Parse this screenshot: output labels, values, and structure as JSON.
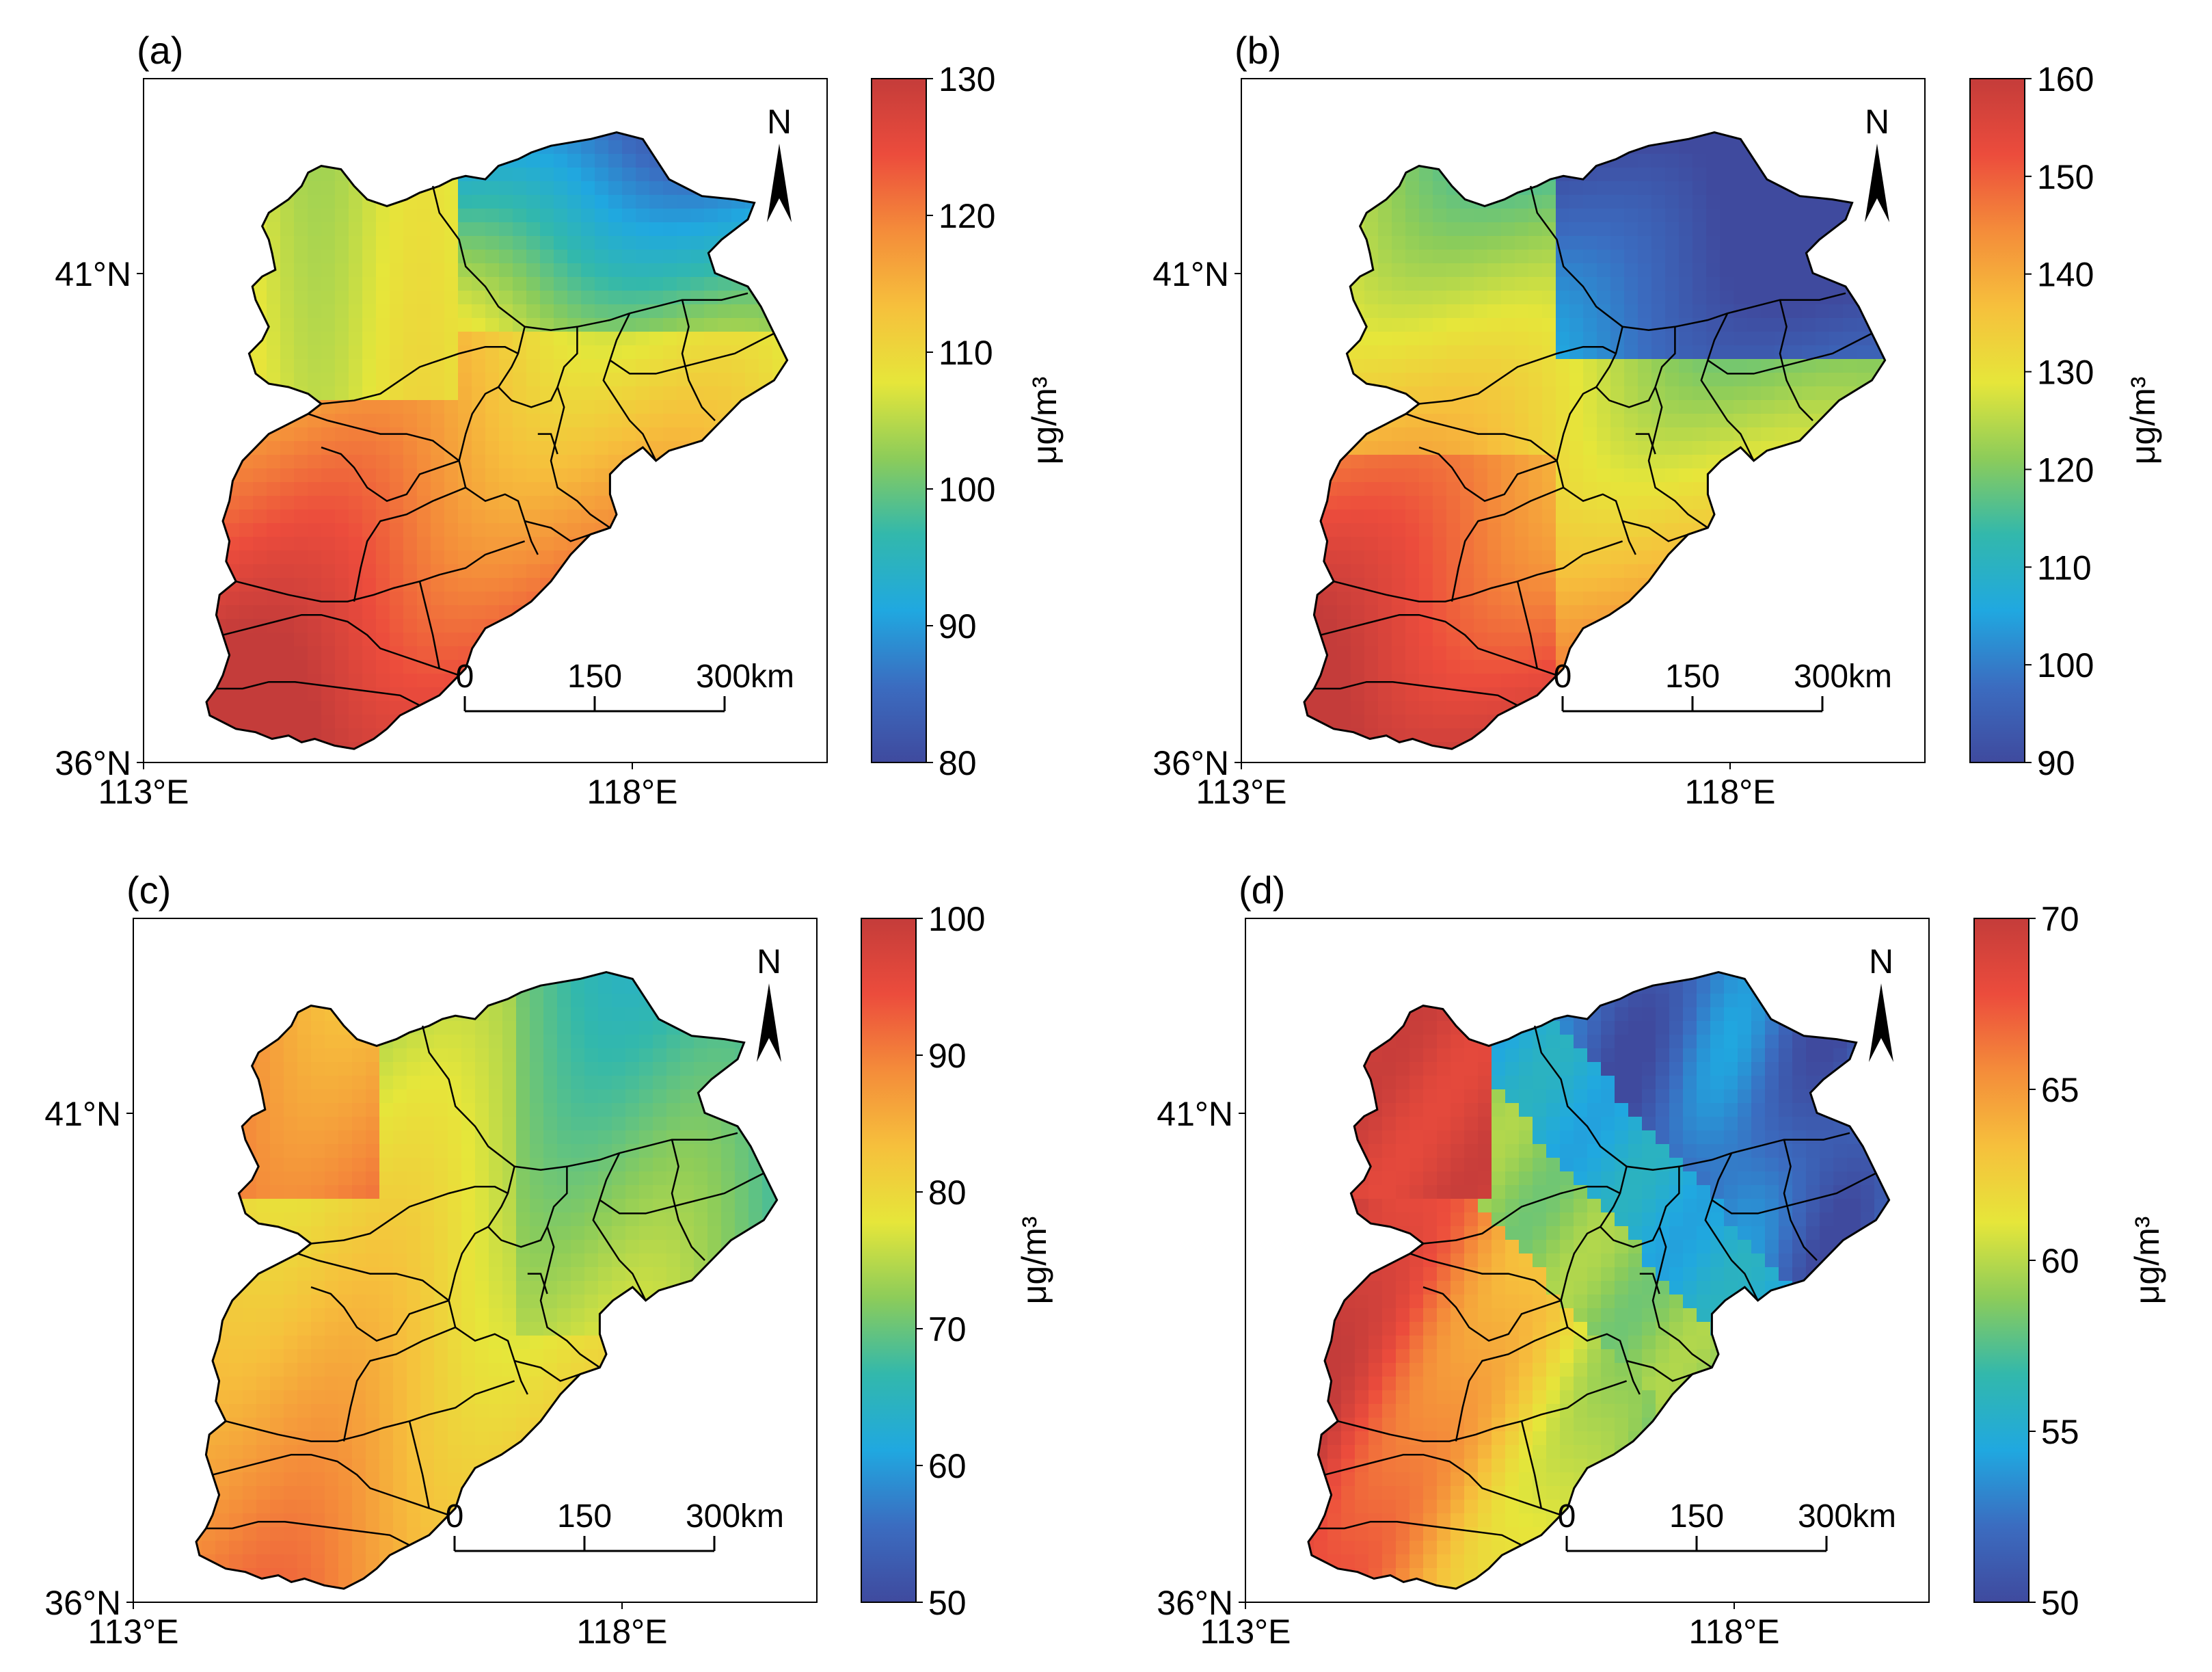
{
  "panels": [
    {
      "label": "(a)",
      "colorbar": {
        "min": 80,
        "max": 130,
        "ticks": [
          80,
          90,
          100,
          110,
          120,
          130
        ],
        "unit": "μg/m³"
      },
      "lat_labels": [
        "41°N",
        "36°N"
      ],
      "lon_labels": [
        "113°E",
        "118°E"
      ],
      "north": "N",
      "scalebar": {
        "labels": [
          "0",
          "150",
          "300km"
        ]
      },
      "pattern": "a"
    },
    {
      "label": "(b)",
      "colorbar": {
        "min": 90,
        "max": 160,
        "ticks": [
          90,
          100,
          110,
          120,
          130,
          140,
          150,
          160
        ],
        "unit": "μg/m³"
      },
      "lat_labels": [
        "41°N",
        "36°N"
      ],
      "lon_labels": [
        "113°E",
        "118°E"
      ],
      "north": "N",
      "scalebar": {
        "labels": [
          "0",
          "150",
          "300km"
        ]
      },
      "pattern": "b"
    },
    {
      "label": "(c)",
      "colorbar": {
        "min": 50,
        "max": 100,
        "ticks": [
          50,
          60,
          70,
          80,
          90,
          100
        ],
        "unit": "μg/m³"
      },
      "lat_labels": [
        "41°N",
        "36°N"
      ],
      "lon_labels": [
        "113°E",
        "118°E"
      ],
      "north": "N",
      "scalebar": {
        "labels": [
          "0",
          "150",
          "300km"
        ]
      },
      "pattern": "c"
    },
    {
      "label": "(d)",
      "colorbar": {
        "min": 50,
        "max": 70,
        "ticks": [
          50,
          55,
          60,
          65,
          70
        ],
        "unit": "μg/m³"
      },
      "lat_labels": [
        "41°N",
        "36°N"
      ],
      "lon_labels": [
        "113°E",
        "118°E"
      ],
      "north": "N",
      "scalebar": {
        "labels": [
          "0",
          "150",
          "300km"
        ]
      },
      "pattern": "d"
    }
  ],
  "colormap": [
    "#3f4a9e",
    "#3b6cc0",
    "#20a8e0",
    "#32b8ac",
    "#8ccc5a",
    "#e6e63a",
    "#f6c03c",
    "#f48c3a",
    "#ec4c3c",
    "#c43c3a"
  ]
}
